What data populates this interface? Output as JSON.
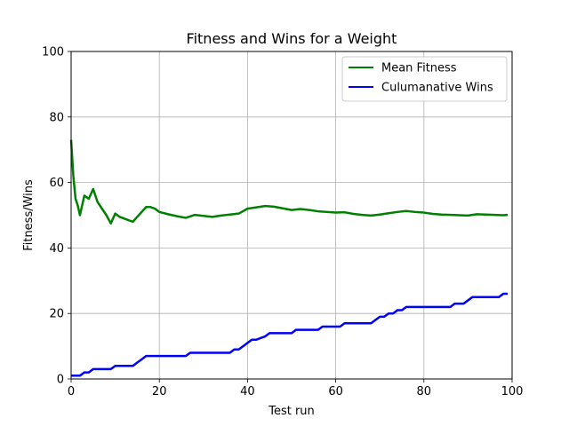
{
  "chart_data": {
    "type": "line",
    "title": "Fitness and Wins for a Weight",
    "xlabel": "Test run",
    "ylabel": "Fitness/Wins",
    "xlim": [
      0,
      100
    ],
    "ylim": [
      0,
      100
    ],
    "xticks": [
      0,
      20,
      40,
      60,
      80,
      100
    ],
    "yticks": [
      0,
      20,
      40,
      60,
      80,
      100
    ],
    "grid": true,
    "legend_position": "upper-right",
    "series": [
      {
        "name": "Mean Fitness",
        "color": "#008000",
        "x": [
          0,
          0.5,
          1,
          1.5,
          2,
          3,
          4,
          5,
          6,
          7,
          8,
          9,
          10,
          11,
          12,
          13,
          14,
          15,
          16,
          17,
          18,
          19,
          20,
          22,
          24,
          26,
          28,
          30,
          32,
          34,
          36,
          38,
          40,
          42,
          44,
          46,
          48,
          50,
          52,
          54,
          56,
          58,
          60,
          62,
          64,
          66,
          68,
          70,
          72,
          74,
          76,
          78,
          80,
          82,
          84,
          86,
          88,
          90,
          92,
          94,
          96,
          98,
          99
        ],
        "y": [
          73,
          62,
          55,
          53,
          50,
          56,
          55,
          58,
          54,
          52,
          50,
          47.5,
          50.5,
          49.5,
          49,
          48.5,
          48,
          49.5,
          51,
          52.5,
          52.5,
          52,
          51,
          50.3,
          49.7,
          49.2,
          50.1,
          49.8,
          49.5,
          49.9,
          50.2,
          50.5,
          52,
          52.4,
          52.8,
          52.6,
          52.1,
          51.6,
          51.9,
          51.6,
          51.2,
          51.0,
          50.8,
          50.9,
          50.4,
          50.1,
          49.9,
          50.2,
          50.6,
          51.0,
          51.3,
          51.0,
          50.8,
          50.4,
          50.2,
          50.1,
          50.0,
          49.9,
          50.3,
          50.2,
          50.1,
          50.0,
          50.1
        ]
      },
      {
        "name": "Culumanative Wins",
        "color": "#0000ff",
        "x": [
          0,
          2,
          3,
          4,
          5,
          6,
          9,
          10,
          13,
          14,
          15,
          16,
          17,
          24,
          26,
          27,
          36,
          37,
          38,
          39,
          40,
          41,
          42,
          44,
          45,
          50,
          51,
          56,
          57,
          61,
          62,
          68,
          69,
          70,
          71,
          72,
          73,
          74,
          75,
          76,
          77,
          78,
          86,
          87,
          89,
          90,
          91,
          92,
          97,
          98,
          99
        ],
        "y": [
          1,
          1,
          2,
          2,
          3,
          3,
          3,
          4,
          4,
          4,
          5,
          6,
          7,
          7,
          7,
          8,
          8,
          9,
          9,
          10,
          11,
          12,
          12,
          13,
          14,
          14,
          15,
          15,
          16,
          16,
          17,
          17,
          18,
          19,
          19,
          20,
          20,
          21,
          21,
          22,
          22,
          22,
          22,
          23,
          23,
          24,
          25,
          25,
          25,
          26,
          26
        ]
      }
    ]
  }
}
